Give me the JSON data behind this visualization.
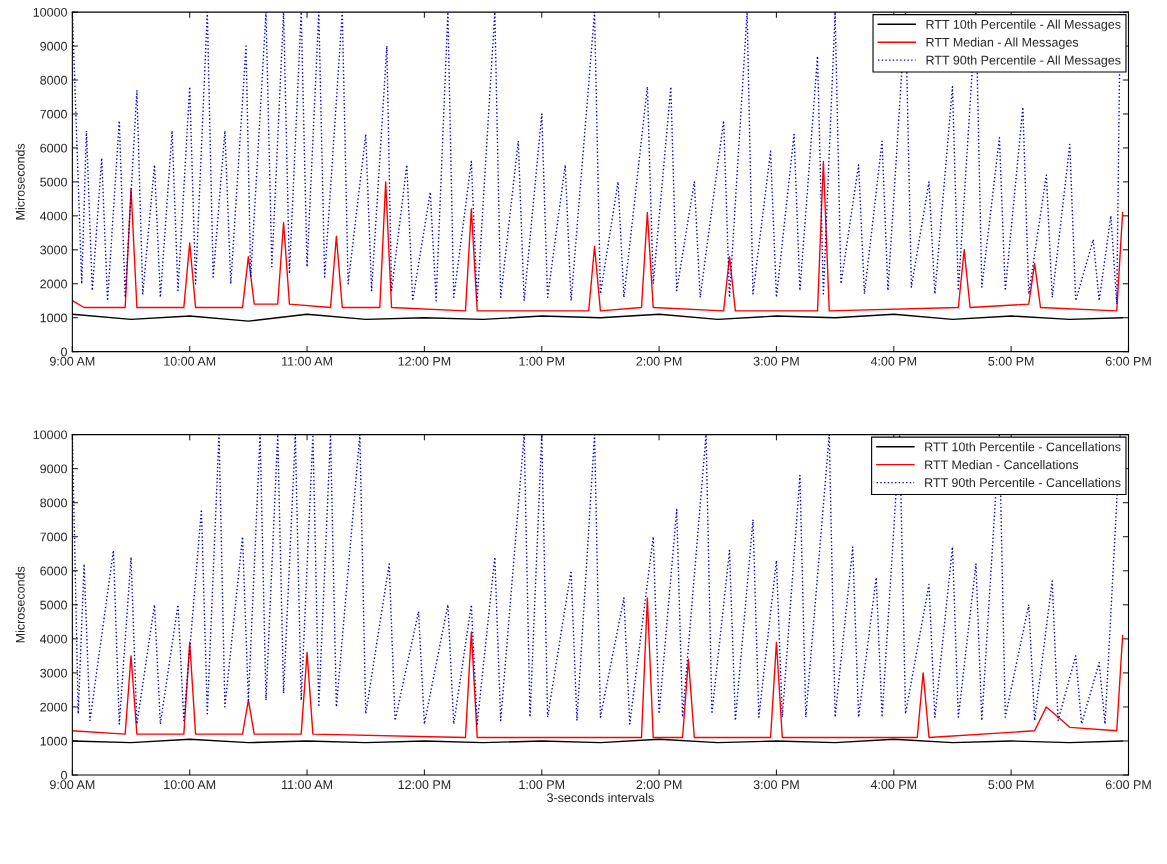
{
  "chart_data": [
    {
      "type": "line",
      "ylabel": "Microseconds",
      "xlim": [
        9,
        18
      ],
      "ylim": [
        0,
        10000
      ],
      "xticks": [
        {
          "value": 9,
          "label": "9:00 AM"
        },
        {
          "value": 10,
          "label": "10:00 AM"
        },
        {
          "value": 11,
          "label": "11:00 AM"
        },
        {
          "value": 12,
          "label": "12:00 PM"
        },
        {
          "value": 13,
          "label": "1:00 PM"
        },
        {
          "value": 14,
          "label": "2:00 PM"
        },
        {
          "value": 15,
          "label": "3:00 PM"
        },
        {
          "value": 16,
          "label": "4:00 PM"
        },
        {
          "value": 17,
          "label": "5:00 PM"
        },
        {
          "value": 18,
          "label": "6:00 PM"
        }
      ],
      "yticks": [
        0,
        1000,
        2000,
        3000,
        4000,
        5000,
        6000,
        7000,
        8000,
        9000,
        10000
      ],
      "legend": "top right",
      "grid": false,
      "marker": "none",
      "series": [
        {
          "name": "RTT 10th Percentile - All Messages",
          "color": "#000000",
          "line_style": "solid",
          "x": [
            9.0,
            9.5,
            10.0,
            10.5,
            11.0,
            11.5,
            12.0,
            12.5,
            13.0,
            13.5,
            14.0,
            14.5,
            15.0,
            15.5,
            16.0,
            16.5,
            17.0,
            17.5,
            17.95
          ],
          "values": [
            1100,
            950,
            1050,
            900,
            1100,
            950,
            1000,
            950,
            1050,
            1000,
            1100,
            950,
            1050,
            1000,
            1100,
            950,
            1050,
            950,
            1000
          ]
        },
        {
          "name": "RTT Median - All Messages",
          "color": "#ff0000",
          "line_style": "solid",
          "x": [
            9.0,
            9.1,
            9.45,
            9.5,
            9.55,
            9.95,
            10.0,
            10.05,
            10.45,
            10.5,
            10.55,
            10.75,
            10.8,
            10.85,
            11.2,
            11.25,
            11.3,
            11.62,
            11.67,
            11.72,
            12.35,
            12.4,
            12.45,
            13.4,
            13.45,
            13.5,
            13.85,
            13.9,
            13.95,
            14.55,
            14.6,
            14.65,
            15.35,
            15.4,
            15.45,
            16.55,
            16.6,
            16.65,
            17.15,
            17.2,
            17.25,
            17.9,
            17.95
          ],
          "values": [
            1500,
            1300,
            1300,
            4800,
            1300,
            1300,
            3200,
            1300,
            1300,
            2800,
            1400,
            1400,
            3800,
            1400,
            1300,
            3400,
            1300,
            1300,
            5000,
            1300,
            1200,
            4200,
            1200,
            1200,
            3100,
            1200,
            1300,
            4100,
            1300,
            1200,
            2800,
            1200,
            1200,
            5600,
            1200,
            1300,
            3000,
            1300,
            1400,
            2600,
            1300,
            1200,
            4100
          ]
        },
        {
          "name": "RTT 90th Percentile - All Messages",
          "color": "#0000cc",
          "line_style": "dotted",
          "x": [
            9.0,
            9.08,
            9.12,
            9.17,
            9.25,
            9.3,
            9.4,
            9.45,
            9.55,
            9.6,
            9.7,
            9.75,
            9.85,
            9.9,
            10.0,
            10.05,
            10.15,
            10.2,
            10.3,
            10.35,
            10.48,
            10.52,
            10.65,
            10.7,
            10.8,
            10.85,
            10.95,
            11.0,
            11.1,
            11.15,
            11.3,
            11.35,
            11.5,
            11.55,
            11.68,
            11.72,
            11.85,
            11.9,
            12.05,
            12.1,
            12.2,
            12.25,
            12.4,
            12.45,
            12.6,
            12.65,
            12.8,
            12.85,
            13.0,
            13.05,
            13.2,
            13.25,
            13.45,
            13.5,
            13.65,
            13.7,
            13.9,
            13.95,
            14.1,
            14.15,
            14.3,
            14.35,
            14.55,
            14.6,
            14.75,
            14.8,
            14.95,
            15.0,
            15.15,
            15.2,
            15.35,
            15.4,
            15.5,
            15.55,
            15.7,
            15.75,
            15.9,
            15.95,
            16.1,
            16.15,
            16.3,
            16.35,
            16.5,
            16.55,
            16.7,
            16.75,
            16.9,
            16.95,
            17.1,
            17.15,
            17.3,
            17.35,
            17.5,
            17.55,
            17.7,
            17.75,
            17.85,
            17.9,
            17.93
          ],
          "values": [
            10000,
            2000,
            6500,
            1800,
            5700,
            1500,
            6800,
            1600,
            7700,
            1700,
            5500,
            1600,
            6500,
            1800,
            7800,
            2000,
            10000,
            2200,
            6500,
            2000,
            9000,
            2200,
            10000,
            2500,
            10000,
            2300,
            10000,
            2500,
            10000,
            2200,
            10000,
            2000,
            6400,
            1800,
            9000,
            1800,
            5500,
            1500,
            4700,
            1500,
            10000,
            1600,
            5600,
            1500,
            10000,
            1600,
            6200,
            1500,
            7000,
            1600,
            5500,
            1500,
            10000,
            1700,
            5000,
            1600,
            7800,
            2000,
            7800,
            1800,
            5000,
            1600,
            6800,
            1600,
            10000,
            1700,
            5900,
            1600,
            6400,
            1800,
            8700,
            1700,
            10000,
            2000,
            5500,
            1700,
            6200,
            1800,
            10000,
            1900,
            5000,
            1700,
            7800,
            1800,
            10000,
            1900,
            6300,
            1800,
            7200,
            1700,
            5200,
            1600,
            6100,
            1500,
            3300,
            1500,
            4000,
            1400,
            10000
          ]
        }
      ]
    },
    {
      "type": "line",
      "xlabel": "3-seconds intervals",
      "ylabel": "Microseconds",
      "xlim": [
        9,
        18
      ],
      "ylim": [
        0,
        10000
      ],
      "xticks": [
        {
          "value": 9,
          "label": "9:00 AM"
        },
        {
          "value": 10,
          "label": "10:00 AM"
        },
        {
          "value": 11,
          "label": "11:00 AM"
        },
        {
          "value": 12,
          "label": "12:00 PM"
        },
        {
          "value": 13,
          "label": "1:00 PM"
        },
        {
          "value": 14,
          "label": "2:00 PM"
        },
        {
          "value": 15,
          "label": "3:00 PM"
        },
        {
          "value": 16,
          "label": "4:00 PM"
        },
        {
          "value": 17,
          "label": "5:00 PM"
        },
        {
          "value": 18,
          "label": "6:00 PM"
        }
      ],
      "yticks": [
        0,
        1000,
        2000,
        3000,
        4000,
        5000,
        6000,
        7000,
        8000,
        9000,
        10000
      ],
      "legend": "top right",
      "grid": false,
      "marker": "none",
      "series": [
        {
          "name": "RTT 10th Percentile - Cancellations",
          "color": "#000000",
          "line_style": "solid",
          "x": [
            9.0,
            9.5,
            10.0,
            10.5,
            11.0,
            11.5,
            12.0,
            12.5,
            13.0,
            13.5,
            14.0,
            14.5,
            15.0,
            15.5,
            16.0,
            16.5,
            17.0,
            17.5,
            17.95
          ],
          "values": [
            1000,
            950,
            1050,
            950,
            1000,
            950,
            1000,
            950,
            1000,
            950,
            1050,
            950,
            1000,
            950,
            1050,
            950,
            1000,
            950,
            1000
          ]
        },
        {
          "name": "RTT Median - Cancellations",
          "color": "#ff0000",
          "line_style": "solid",
          "x": [
            9.0,
            9.45,
            9.5,
            9.55,
            9.95,
            10.0,
            10.05,
            10.45,
            10.5,
            10.55,
            10.95,
            11.0,
            11.05,
            12.35,
            12.4,
            12.45,
            13.85,
            13.9,
            13.95,
            14.2,
            14.25,
            14.3,
            14.95,
            15.0,
            15.05,
            16.2,
            16.25,
            16.3,
            17.2,
            17.3,
            17.5,
            17.9,
            17.95
          ],
          "values": [
            1300,
            1200,
            3500,
            1200,
            1200,
            3900,
            1200,
            1200,
            2200,
            1200,
            1200,
            3600,
            1200,
            1100,
            4200,
            1100,
            1100,
            5200,
            1100,
            1100,
            3400,
            1100,
            1100,
            3900,
            1100,
            1100,
            3000,
            1100,
            1300,
            2000,
            1400,
            1300,
            4100
          ]
        },
        {
          "name": "RTT 90th Percentile - Cancellations",
          "color": "#0000cc",
          "line_style": "dotted",
          "x": [
            9.0,
            9.05,
            9.1,
            9.15,
            9.35,
            9.4,
            9.5,
            9.55,
            9.7,
            9.75,
            9.9,
            9.95,
            10.1,
            10.15,
            10.25,
            10.3,
            10.45,
            10.5,
            10.6,
            10.65,
            10.75,
            10.8,
            10.9,
            10.95,
            11.05,
            11.1,
            11.2,
            11.25,
            11.45,
            11.5,
            11.7,
            11.75,
            11.95,
            12.0,
            12.2,
            12.25,
            12.4,
            12.45,
            12.6,
            12.65,
            12.85,
            12.9,
            13.0,
            13.05,
            13.25,
            13.3,
            13.45,
            13.5,
            13.7,
            13.75,
            13.95,
            14.0,
            14.15,
            14.2,
            14.4,
            14.45,
            14.6,
            14.65,
            14.8,
            14.85,
            15.0,
            15.05,
            15.2,
            15.25,
            15.45,
            15.5,
            15.65,
            15.7,
            15.85,
            15.9,
            16.05,
            16.1,
            16.3,
            16.35,
            16.5,
            16.55,
            16.7,
            16.75,
            16.9,
            16.95,
            17.15,
            17.2,
            17.35,
            17.4,
            17.55,
            17.6,
            17.75,
            17.8,
            17.93
          ],
          "values": [
            10000,
            1800,
            6200,
            1600,
            6600,
            1500,
            6400,
            1500,
            5000,
            1500,
            5000,
            1600,
            7800,
            1800,
            10000,
            2000,
            7000,
            2200,
            10000,
            2200,
            10000,
            2400,
            10000,
            2200,
            10000,
            2000,
            10000,
            2000,
            10000,
            1800,
            6200,
            1600,
            4800,
            1500,
            5000,
            1500,
            5000,
            1500,
            6400,
            1600,
            10000,
            1700,
            10000,
            1700,
            6000,
            1600,
            10000,
            1700,
            5200,
            1500,
            7000,
            1800,
            7800,
            1700,
            10000,
            1800,
            6600,
            1600,
            7500,
            1700,
            6300,
            1700,
            8800,
            1700,
            10000,
            1700,
            6700,
            1700,
            5800,
            1700,
            10000,
            1800,
            5600,
            1700,
            6700,
            1700,
            6200,
            1600,
            10000,
            1700,
            5000,
            1600,
            5700,
            1600,
            3500,
            1500,
            3300,
            1500,
            10000
          ]
        }
      ]
    }
  ]
}
